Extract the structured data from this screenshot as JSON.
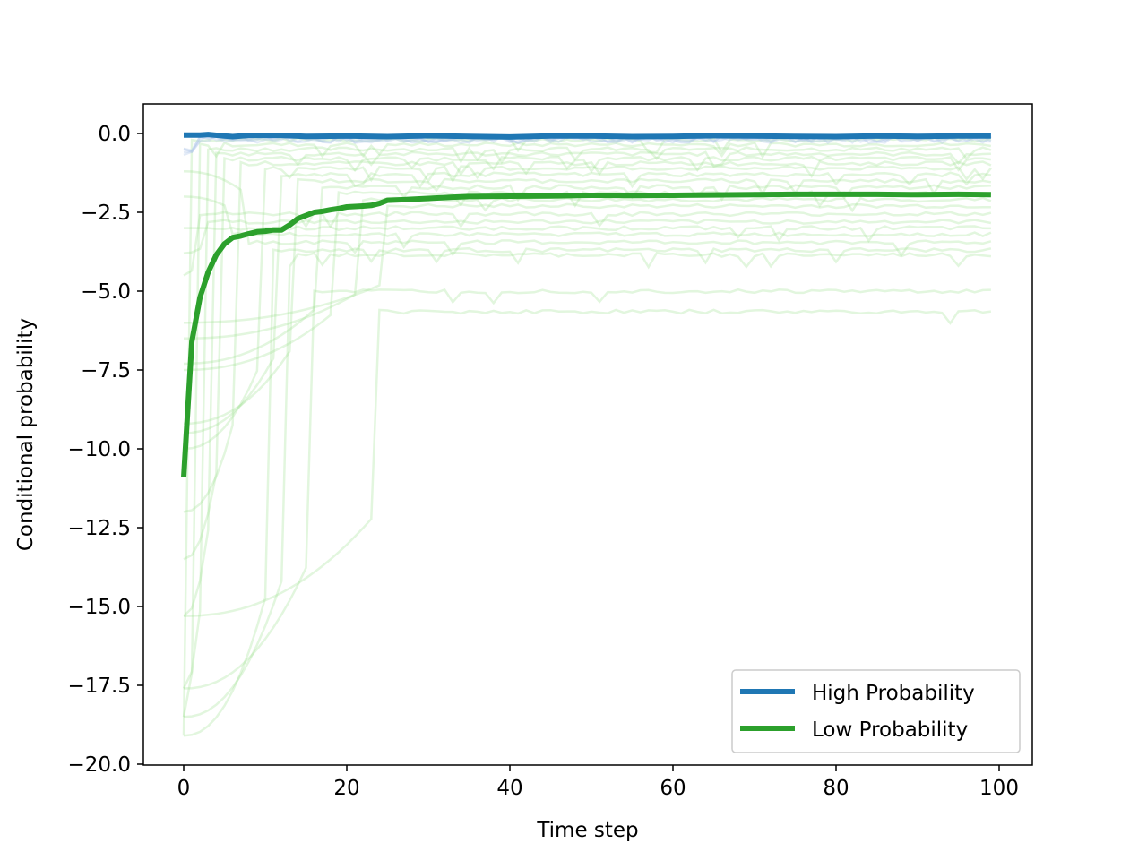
{
  "chart_data": {
    "type": "line",
    "title": "",
    "xlabel": "Time step",
    "ylabel": "Conditional probability",
    "xlim": [
      -5,
      104
    ],
    "ylim": [
      -20.0,
      1.0
    ],
    "xticks": [
      0,
      20,
      40,
      60,
      80,
      100
    ],
    "xtick_labels": [
      "0",
      "20",
      "40",
      "60",
      "80",
      "100"
    ],
    "yticks": [
      0.0,
      -2.5,
      -5.0,
      -7.5,
      -10.0,
      -12.5,
      -15.0,
      -17.5,
      -20.0
    ],
    "ytick_labels": [
      "0.0",
      "−2.5",
      "−5.0",
      "−7.5",
      "−10.0",
      "−12.5",
      "−15.0",
      "−17.5",
      "−20.0"
    ],
    "grid": false,
    "legend_position": "lower-right",
    "series": [
      {
        "name": "High Probability",
        "color": "#1f77b4",
        "points": [
          [
            0,
            -0.05
          ],
          [
            2,
            -0.05
          ],
          [
            3,
            -0.03
          ],
          [
            5,
            -0.08
          ],
          [
            6,
            -0.1
          ],
          [
            8,
            -0.06
          ],
          [
            12,
            -0.06
          ],
          [
            15,
            -0.09
          ],
          [
            20,
            -0.08
          ],
          [
            25,
            -0.1
          ],
          [
            30,
            -0.07
          ],
          [
            35,
            -0.09
          ],
          [
            40,
            -0.11
          ],
          [
            45,
            -0.08
          ],
          [
            50,
            -0.08
          ],
          [
            55,
            -0.1
          ],
          [
            60,
            -0.09
          ],
          [
            65,
            -0.07
          ],
          [
            70,
            -0.08
          ],
          [
            75,
            -0.09
          ],
          [
            80,
            -0.1
          ],
          [
            85,
            -0.08
          ],
          [
            90,
            -0.09
          ],
          [
            95,
            -0.08
          ],
          [
            99,
            -0.08
          ]
        ]
      },
      {
        "name": "Low Probability",
        "color": "#2ca02c",
        "points": [
          [
            0,
            -10.9
          ],
          [
            1,
            -6.6
          ],
          [
            2,
            -5.2
          ],
          [
            3,
            -4.4
          ],
          [
            4,
            -3.85
          ],
          [
            5,
            -3.5
          ],
          [
            6,
            -3.3
          ],
          [
            7,
            -3.25
          ],
          [
            8,
            -3.18
          ],
          [
            9,
            -3.12
          ],
          [
            10,
            -3.1
          ],
          [
            11,
            -3.06
          ],
          [
            12,
            -3.06
          ],
          [
            13,
            -2.9
          ],
          [
            14,
            -2.7
          ],
          [
            15,
            -2.6
          ],
          [
            16,
            -2.5
          ],
          [
            17,
            -2.47
          ],
          [
            18,
            -2.42
          ],
          [
            19,
            -2.38
          ],
          [
            20,
            -2.33
          ],
          [
            22,
            -2.3
          ],
          [
            23,
            -2.28
          ],
          [
            24,
            -2.22
          ],
          [
            25,
            -2.12
          ],
          [
            27,
            -2.1
          ],
          [
            30,
            -2.06
          ],
          [
            33,
            -2.02
          ],
          [
            35,
            -2.0
          ],
          [
            40,
            -1.99
          ],
          [
            45,
            -1.98
          ],
          [
            50,
            -1.96
          ],
          [
            55,
            -1.97
          ],
          [
            60,
            -1.96
          ],
          [
            65,
            -1.95
          ],
          [
            70,
            -1.94
          ],
          [
            75,
            -1.93
          ],
          [
            80,
            -1.93
          ],
          [
            85,
            -1.93
          ],
          [
            90,
            -1.94
          ],
          [
            95,
            -1.93
          ],
          [
            99,
            -1.94
          ]
        ]
      }
    ],
    "background_trajectories": {
      "color": "#98df8a",
      "high_color": "#aec7e8",
      "levels": [
        -0.2,
        -0.35,
        -0.5,
        -0.65,
        -0.8,
        -0.95,
        -1.1,
        -1.3,
        -1.5,
        -1.7,
        -1.9,
        -2.1,
        -2.3,
        -2.55,
        -2.8,
        -3.0,
        -3.2,
        -3.45,
        -3.7,
        -3.85,
        -5.0,
        -5.65
      ],
      "start_values": [
        -19.1,
        -18.5,
        -17.6,
        -15.3,
        -13.5,
        -12.0,
        -10.0,
        -9.5,
        -9.2,
        -7.3,
        -7.5,
        -6.5,
        -6.0,
        -4.5,
        -3.8,
        -3.0,
        -2.0,
        -1.2
      ],
      "jump_steps": [
        1,
        2,
        3,
        4,
        5,
        7,
        10,
        12,
        14,
        17,
        19,
        22,
        25,
        2,
        3,
        4,
        6,
        8,
        11,
        13,
        16,
        24
      ]
    }
  }
}
